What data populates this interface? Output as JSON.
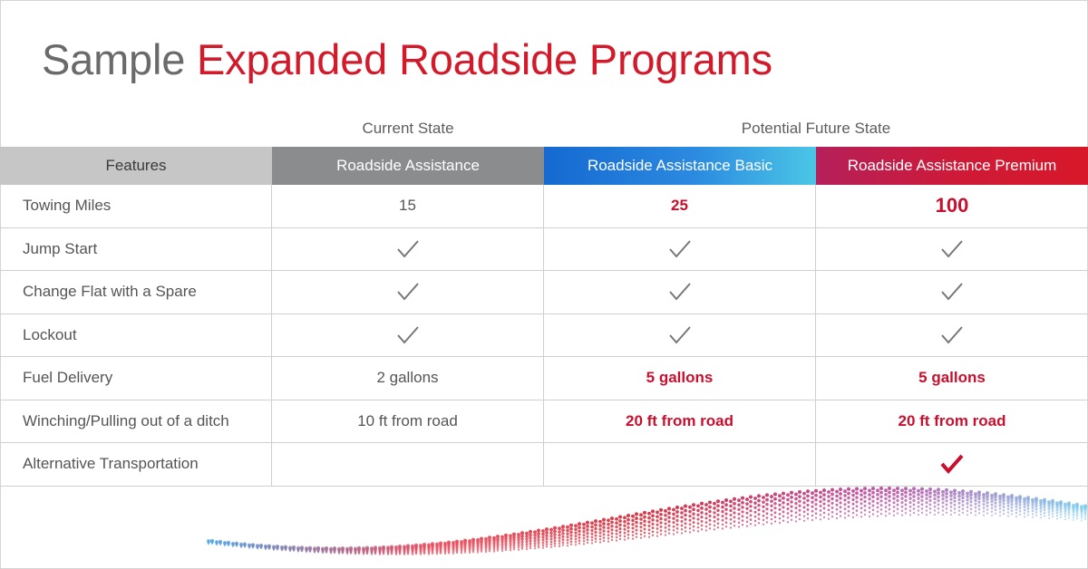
{
  "title": {
    "lead": "Sample",
    "accent": "Expanded Roadside Programs"
  },
  "groups": {
    "current": "Current State",
    "future": "Potential Future State"
  },
  "columns": {
    "features": "Features",
    "current": "Roadside Assistance",
    "basic": "Roadside Assistance Basic",
    "premium": "Roadside Assistance Premium"
  },
  "rows": [
    {
      "feature": "Towing Miles",
      "current": "15",
      "basic": "25",
      "premium": "100"
    },
    {
      "feature": "Jump Start",
      "current": "check-icon",
      "basic": "check-icon",
      "premium": "check-icon"
    },
    {
      "feature": "Change Flat with a Spare",
      "current": "check-icon",
      "basic": "check-icon",
      "premium": "check-icon"
    },
    {
      "feature": "Lockout",
      "current": "check-icon",
      "basic": "check-icon",
      "premium": "check-icon"
    },
    {
      "feature": "Fuel Delivery",
      "current": "2 gallons",
      "basic": "5 gallons",
      "premium": "5 gallons"
    },
    {
      "feature": "Winching/Pulling out of a ditch",
      "current": "10 ft from road",
      "basic": "20 ft from road",
      "premium": "20 ft from road"
    },
    {
      "feature": "Alternative Transportation",
      "current": "",
      "basic": "",
      "premium": "check-icon-red"
    }
  ],
  "colors": {
    "accent": "#d21a2a",
    "value_red": "#c8102e",
    "check_gray": "#777777",
    "header_current": "#8b8c8e"
  }
}
